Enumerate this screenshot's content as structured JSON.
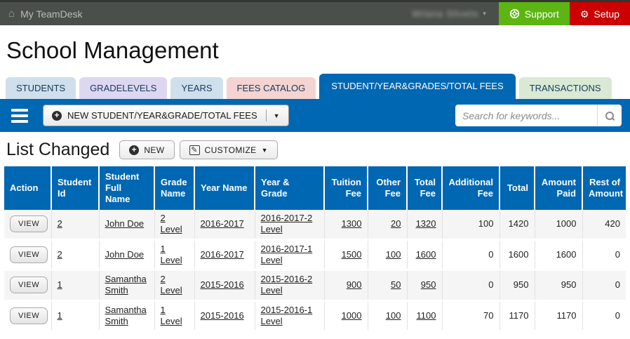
{
  "topbar": {
    "brand": "My TeamDesk",
    "user_name": "Milana Shvets",
    "support_label": "Support",
    "setup_label": "Setup"
  },
  "page": {
    "title": "School Management"
  },
  "tabs": [
    {
      "label": "STUDENTS",
      "bg": "#cfdfeb",
      "active": false
    },
    {
      "label": "GRADELEVELS",
      "bg": "#ded7f2",
      "active": false
    },
    {
      "label": "YEARS",
      "bg": "#cfdfeb",
      "active": false
    },
    {
      "label": "FEES CATALOG",
      "bg": "#f4d3d1",
      "active": false
    },
    {
      "label": "STUDENT/YEAR&GRADES/TOTAL FEES",
      "bg": "#0067b3",
      "active": true
    },
    {
      "label": "TRANSACTIONS",
      "bg": "#d9e9d4",
      "active": false
    }
  ],
  "toolbar": {
    "new_button_label": "NEW STUDENT/YEAR&GRADE/TOTAL FEES",
    "search_placeholder": "Search for keywords..."
  },
  "list": {
    "title": "List Changed",
    "new_label": "NEW",
    "customize_label": "CUSTOMIZE"
  },
  "table": {
    "columns": [
      "Action",
      "Student Id",
      "Student Full Name",
      "Grade Name",
      "Year Name",
      "Year & Grade",
      "Tuition Fee",
      "Other Fee",
      "Total Fee",
      "Additional Fee",
      "Total",
      "Amount Paid",
      "Rest of Amount"
    ],
    "rows": [
      {
        "action": "VIEW",
        "student_id": "2",
        "student_full_name": "John Doe",
        "grade_name": "2 Level",
        "year_name": "2016-2017",
        "year_grade": "2016-2017-2 Level",
        "tuition_fee": "1300",
        "other_fee": "20",
        "total_fee": "1320",
        "additional_fee": "100",
        "total": "1420",
        "amount_paid": "1000",
        "rest_of_amount": "420"
      },
      {
        "action": "VIEW",
        "student_id": "2",
        "student_full_name": "John Doe",
        "grade_name": "1 Level",
        "year_name": "2016-2017",
        "year_grade": "2016-2017-1 Level",
        "tuition_fee": "1500",
        "other_fee": "100",
        "total_fee": "1600",
        "additional_fee": "0",
        "total": "1600",
        "amount_paid": "1600",
        "rest_of_amount": "0"
      },
      {
        "action": "VIEW",
        "student_id": "1",
        "student_full_name": "Samantha Smith",
        "grade_name": "2 Level",
        "year_name": "2015-2016",
        "year_grade": "2015-2016-2 Level",
        "tuition_fee": "900",
        "other_fee": "50",
        "total_fee": "950",
        "additional_fee": "0",
        "total": "950",
        "amount_paid": "950",
        "rest_of_amount": "0"
      },
      {
        "action": "VIEW",
        "student_id": "1",
        "student_full_name": "Samantha Smith",
        "grade_name": "1 Level",
        "year_name": "2015-2016",
        "year_grade": "2015-2016-1 Level",
        "tuition_fee": "1000",
        "other_fee": "100",
        "total_fee": "1100",
        "additional_fee": "70",
        "total": "1170",
        "amount_paid": "1170",
        "rest_of_amount": "0"
      }
    ]
  },
  "colors": {
    "accent_blue": "#0067b3",
    "topbar_gray": "#4b4f4b",
    "support_green": "#5cb512",
    "setup_red": "#cc0000",
    "row_stripe": "#f5f5f5",
    "tab_text_navy": "#16395f"
  }
}
